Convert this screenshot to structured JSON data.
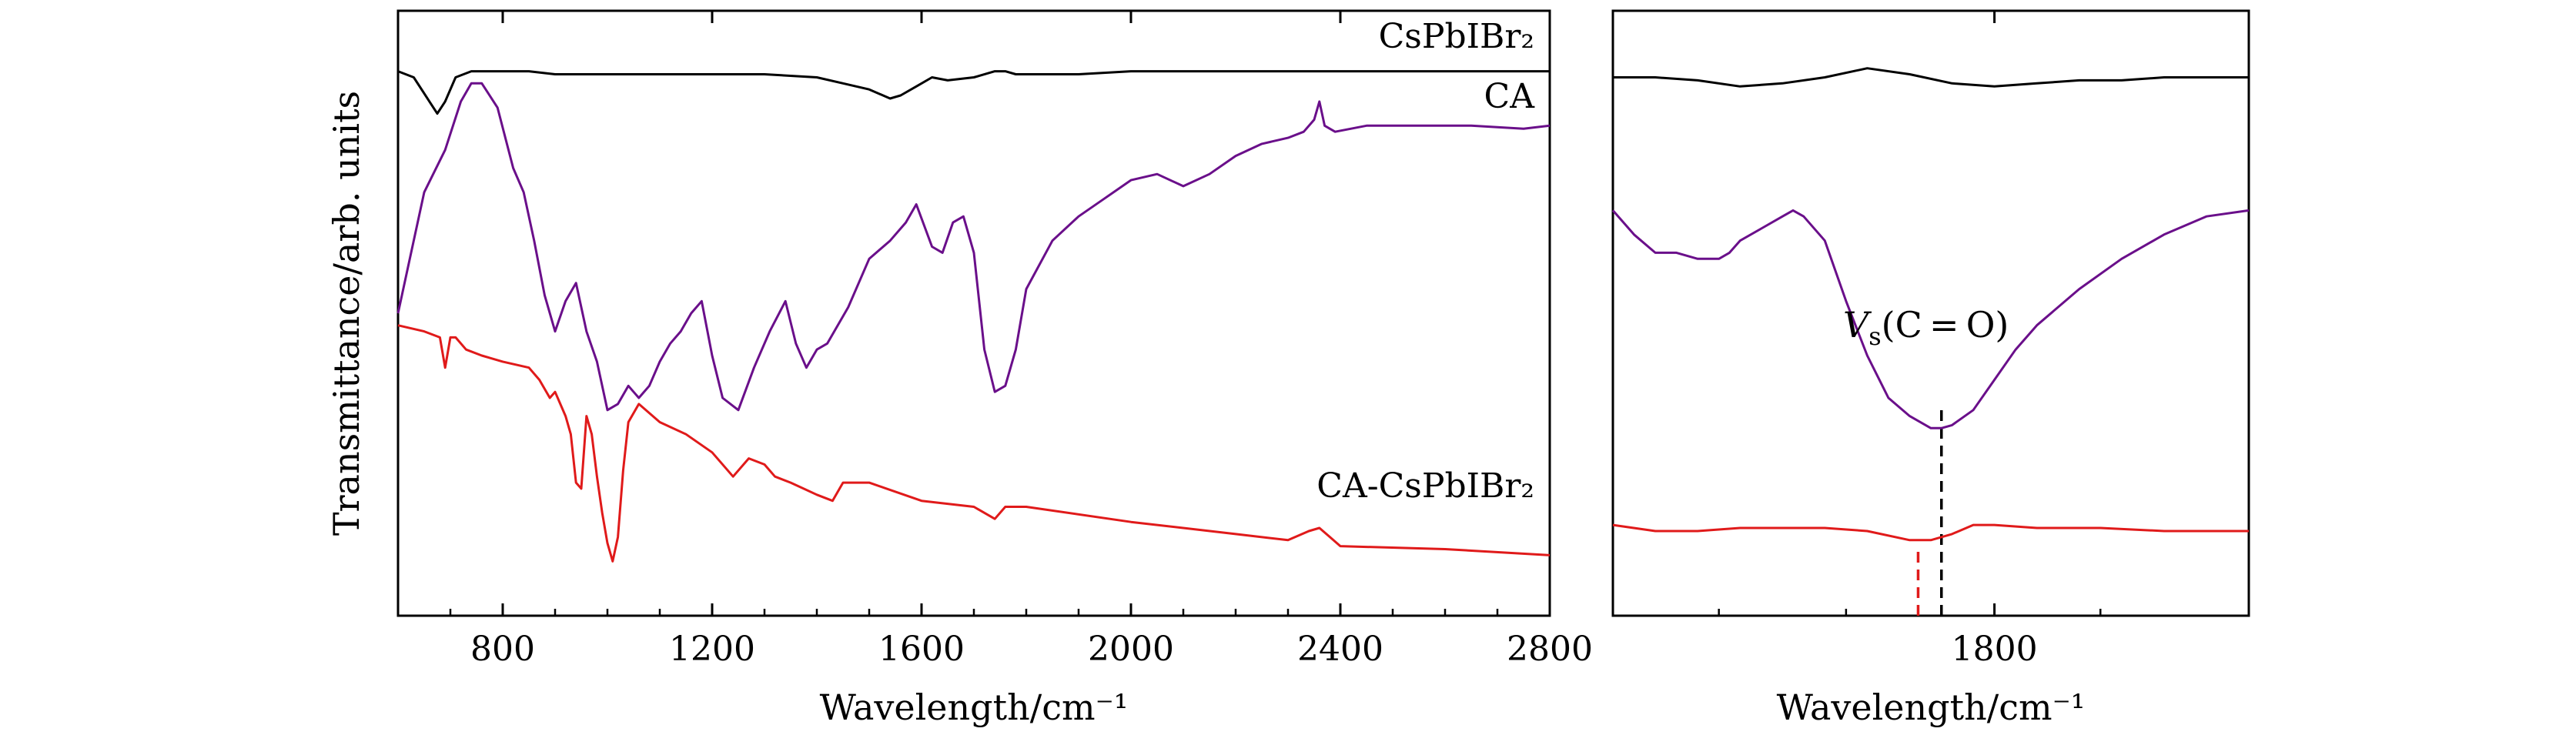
{
  "figure": {
    "ylabel": "Transmittance/arb. units",
    "colors": {
      "CsPbIBr2": "#000000",
      "CA": "#6a0f8a",
      "CA-CsPbIBr2": "#e01a1a",
      "axis": "#000000"
    }
  },
  "chart_data": [
    {
      "type": "line",
      "xlabel": "Wavelength/cm⁻¹",
      "ylabel": "Transmittance/arb. units",
      "xlim": [
        600,
        2800
      ],
      "ylim": [
        0,
        100
      ],
      "xticks": [
        800,
        1200,
        1600,
        2000,
        2400,
        2800
      ],
      "xtick_labels": [
        "800",
        "1200",
        "1600",
        "2000",
        "2400",
        "2800"
      ],
      "grid": false,
      "series": [
        {
          "name": "CsPbIBr2",
          "label_text": "CsPbIBr₂",
          "color": "#000000",
          "x": [
            600,
            630,
            660,
            675,
            690,
            710,
            740,
            800,
            850,
            900,
            1000,
            1100,
            1200,
            1300,
            1400,
            1450,
            1500,
            1540,
            1560,
            1590,
            1620,
            1650,
            1700,
            1740,
            1760,
            1780,
            1800,
            1900,
            2000,
            2200,
            2400,
            2600,
            2800
          ],
          "y": [
            90,
            89,
            85,
            83,
            85,
            89,
            90,
            90,
            90,
            89.5,
            89.5,
            89.5,
            89.5,
            89.5,
            89,
            88,
            87,
            85.5,
            86,
            87.5,
            89,
            88.5,
            89,
            90,
            90,
            89.5,
            89.5,
            89.5,
            90,
            90,
            90,
            90,
            90
          ]
        },
        {
          "name": "CA",
          "label_text": "CA",
          "color": "#6a0f8a",
          "x": [
            600,
            620,
            650,
            690,
            720,
            740,
            760,
            790,
            820,
            840,
            860,
            880,
            900,
            920,
            940,
            960,
            980,
            1000,
            1020,
            1040,
            1050,
            1060,
            1080,
            1100,
            1120,
            1140,
            1160,
            1180,
            1200,
            1220,
            1250,
            1280,
            1310,
            1340,
            1360,
            1380,
            1400,
            1420,
            1460,
            1500,
            1540,
            1570,
            1590,
            1620,
            1640,
            1660,
            1680,
            1700,
            1720,
            1740,
            1760,
            1780,
            1800,
            1850,
            1900,
            1950,
            2000,
            2050,
            2100,
            2150,
            2200,
            2250,
            2300,
            2330,
            2350,
            2360,
            2370,
            2390,
            2450,
            2550,
            2650,
            2750,
            2800
          ],
          "y": [
            50,
            58,
            70,
            77,
            85,
            88,
            88,
            84,
            74,
            70,
            62,
            53,
            47,
            52,
            55,
            47,
            42,
            34,
            35,
            38,
            37,
            36,
            38,
            42,
            45,
            47,
            50,
            52,
            43,
            36,
            34,
            41,
            47,
            52,
            45,
            41,
            44,
            45,
            51,
            59,
            62,
            65,
            68,
            61,
            60,
            65,
            66,
            60,
            44,
            37,
            38,
            44,
            54,
            62,
            66,
            69,
            72,
            73,
            71,
            73,
            76,
            78,
            79,
            80,
            82,
            85,
            81,
            80,
            81,
            81,
            81,
            80.5,
            81
          ]
        },
        {
          "name": "CA-CsPbIBr2",
          "label_text": "CA-CsPbIBr₂",
          "color": "#e01a1a",
          "x": [
            600,
            650,
            680,
            690,
            700,
            710,
            730,
            760,
            800,
            850,
            870,
            890,
            900,
            910,
            920,
            930,
            940,
            950,
            960,
            970,
            980,
            990,
            1000,
            1010,
            1020,
            1030,
            1040,
            1060,
            1100,
            1150,
            1200,
            1240,
            1270,
            1300,
            1320,
            1350,
            1400,
            1430,
            1450,
            1500,
            1600,
            1700,
            1740,
            1760,
            1800,
            2000,
            2200,
            2300,
            2340,
            2360,
            2380,
            2400,
            2600,
            2800
          ],
          "y": [
            48,
            47,
            46,
            41,
            46,
            46,
            44,
            43,
            42,
            41,
            39,
            36,
            37,
            35,
            33,
            30,
            22,
            21,
            33,
            30,
            23,
            17,
            12,
            9,
            13,
            24,
            32,
            35,
            32,
            30,
            27,
            23,
            26,
            25,
            23,
            22,
            20,
            19,
            22,
            22,
            19,
            18,
            16,
            18,
            18,
            15.5,
            13.5,
            12.5,
            14,
            14.5,
            13,
            11.5,
            11,
            10
          ]
        }
      ]
    },
    {
      "type": "line",
      "xlabel": "Wavelength/cm⁻¹",
      "xlim": [
        1620,
        1920
      ],
      "ylim": [
        0,
        100
      ],
      "xticks": [
        1800
      ],
      "xtick_labels": [
        "1800"
      ],
      "minor_ticks": [
        1670,
        1730,
        1850
      ],
      "grid": false,
      "annotation": {
        "text_main": "V",
        "text_sub": "s",
        "text_rest": "(C = O)",
        "x": 1775
      },
      "series": [
        {
          "name": "CsPbIBr2",
          "color": "#000000",
          "x": [
            1620,
            1640,
            1660,
            1680,
            1700,
            1720,
            1740,
            1760,
            1780,
            1800,
            1820,
            1840,
            1860,
            1880,
            1900,
            1920
          ],
          "y": [
            89,
            89,
            88.5,
            87.5,
            88,
            89,
            90.5,
            89.5,
            88,
            87.5,
            88,
            88.5,
            88.5,
            89,
            89,
            89
          ]
        },
        {
          "name": "CA",
          "color": "#6a0f8a",
          "x": [
            1620,
            1630,
            1640,
            1650,
            1660,
            1670,
            1675,
            1680,
            1690,
            1700,
            1705,
            1710,
            1720,
            1730,
            1740,
            1750,
            1760,
            1770,
            1775,
            1780,
            1790,
            1800,
            1810,
            1820,
            1840,
            1860,
            1880,
            1900,
            1920
          ],
          "y": [
            67,
            63,
            60,
            60,
            59,
            59,
            60,
            62,
            64,
            66,
            67,
            66,
            62,
            52,
            43,
            36,
            33,
            31,
            31,
            31.5,
            34,
            39,
            44,
            48,
            54,
            59,
            63,
            66,
            67
          ]
        },
        {
          "name": "CA-CsPbIBr2",
          "color": "#e01a1a",
          "x": [
            1620,
            1640,
            1660,
            1680,
            1700,
            1720,
            1740,
            1760,
            1770,
            1780,
            1790,
            1800,
            1820,
            1850,
            1880,
            1920
          ],
          "y": [
            15,
            14,
            14,
            14.5,
            14.5,
            14.5,
            14,
            12.5,
            12.5,
            13.5,
            15,
            15,
            14.5,
            14.5,
            14,
            14
          ]
        }
      ],
      "markers": [
        {
          "x": 1775,
          "y_from": 0,
          "y_to": 35,
          "color": "#000000",
          "style": "dashed"
        },
        {
          "x": 1764,
          "y_from": 0,
          "y_to": 11,
          "color": "#e01a1a",
          "style": "dashed"
        }
      ]
    }
  ]
}
